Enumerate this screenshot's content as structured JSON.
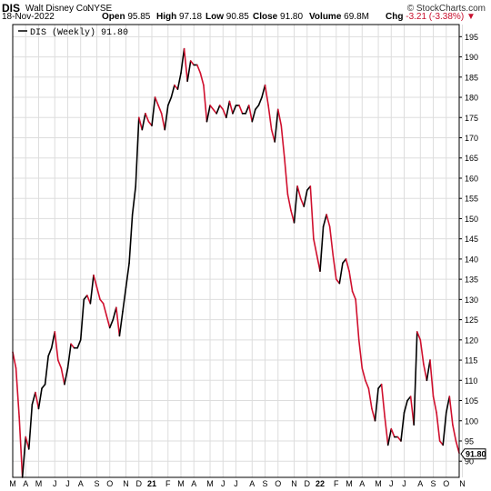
{
  "header": {
    "symbol": "DIS",
    "company": "Walt Disney Co.",
    "exchange": "NYSE",
    "copyright": "© StockCharts.com",
    "date": "18-Nov-2022",
    "open_label": "Open",
    "open": "95.85",
    "high_label": "High",
    "high": "97.18",
    "low_label": "Low",
    "low": "90.85",
    "close_label": "Close",
    "close": "91.80",
    "volume_label": "Volume",
    "volume": "69.8M",
    "chg_label": "Chg",
    "chg": "-3.21 (-3.38%)",
    "chg_arrow": "▼"
  },
  "legend": {
    "label": "DIS (Weekly) 91.80"
  },
  "colors": {
    "up": "#000000",
    "down": "#d0102e",
    "grid": "#dddddd",
    "border": "#000000"
  },
  "chart_data": {
    "type": "line",
    "title": "DIS (Weekly) 91.80",
    "ylim": [
      86,
      198
    ],
    "yticks": [
      90,
      95,
      100,
      105,
      110,
      115,
      120,
      125,
      130,
      135,
      140,
      145,
      150,
      155,
      160,
      165,
      170,
      175,
      180,
      185,
      190,
      195
    ],
    "xticks": [
      {
        "label": "M",
        "w": 0
      },
      {
        "label": "A",
        "w": 4
      },
      {
        "label": "M",
        "w": 8
      },
      {
        "label": "J",
        "w": 13
      },
      {
        "label": "J",
        "w": 17
      },
      {
        "label": "A",
        "w": 21
      },
      {
        "label": "S",
        "w": 26
      },
      {
        "label": "O",
        "w": 30
      },
      {
        "label": "N",
        "w": 35
      },
      {
        "label": "D",
        "w": 39
      },
      {
        "label": "21",
        "w": 43
      },
      {
        "label": "F",
        "w": 48
      },
      {
        "label": "M",
        "w": 52
      },
      {
        "label": "A",
        "w": 56
      },
      {
        "label": "M",
        "w": 61
      },
      {
        "label": "J",
        "w": 65
      },
      {
        "label": "J",
        "w": 69
      },
      {
        "label": "A",
        "w": 74
      },
      {
        "label": "S",
        "w": 78
      },
      {
        "label": "O",
        "w": 82
      },
      {
        "label": "N",
        "w": 87
      },
      {
        "label": "D",
        "w": 91
      },
      {
        "label": "22",
        "w": 95
      },
      {
        "label": "F",
        "w": 100
      },
      {
        "label": "M",
        "w": 104
      },
      {
        "label": "A",
        "w": 108
      },
      {
        "label": "M",
        "w": 113
      },
      {
        "label": "J",
        "w": 117
      },
      {
        "label": "J",
        "w": 121
      },
      {
        "label": "A",
        "w": 126
      },
      {
        "label": "S",
        "w": 130
      },
      {
        "label": "O",
        "w": 134
      },
      {
        "label": "N",
        "w": 139
      }
    ],
    "values": [
      117,
      113,
      101,
      86,
      96,
      93,
      104,
      107,
      103,
      108,
      109,
      116,
      118,
      122,
      115,
      113,
      109,
      113,
      119,
      118,
      118,
      120,
      130,
      131,
      129,
      136,
      133,
      130,
      129,
      126,
      123,
      125,
      128,
      121,
      127,
      133,
      139,
      151,
      158,
      175,
      172,
      176,
      174,
      173,
      180,
      178,
      176,
      172,
      178,
      180,
      183,
      182,
      186,
      192,
      184,
      189,
      188,
      188,
      186,
      183,
      174,
      178,
      177,
      176,
      178,
      177,
      175,
      179,
      176,
      178,
      178,
      176,
      176,
      178,
      174,
      177,
      178,
      180,
      183,
      178,
      172,
      169,
      177,
      173,
      165,
      156,
      152,
      149,
      158,
      155,
      153,
      157,
      158,
      145,
      141,
      137,
      148,
      151,
      148,
      141,
      135,
      134,
      139,
      140,
      137,
      132,
      130,
      120,
      113,
      110,
      108,
      103,
      100,
      108,
      109,
      101,
      94,
      98,
      96,
      96,
      95,
      102,
      105,
      106,
      99,
      122,
      120,
      114,
      110,
      115,
      106,
      102,
      95,
      94,
      102,
      106,
      99,
      95,
      92
    ],
    "last_value_label": "91.80"
  }
}
